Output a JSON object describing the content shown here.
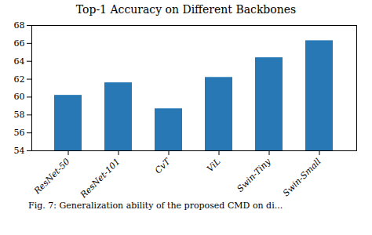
{
  "chart_data": {
    "type": "bar",
    "title": "Top-1 Accuracy on Different Backbones",
    "categories": [
      "ResNet-50",
      "ResNet-101",
      "CvT",
      "ViL",
      "Swin-Tiny",
      "Swin-Small"
    ],
    "values": [
      60.2,
      61.6,
      58.7,
      62.2,
      64.4,
      66.3
    ],
    "color": "#2878b5",
    "ylim": [
      54,
      68
    ],
    "yticks": [
      54,
      56,
      58,
      60,
      62,
      64,
      66,
      68
    ],
    "grid": false,
    "caption": "Fig. 7: Generalization ability of the proposed CMD on di..."
  }
}
